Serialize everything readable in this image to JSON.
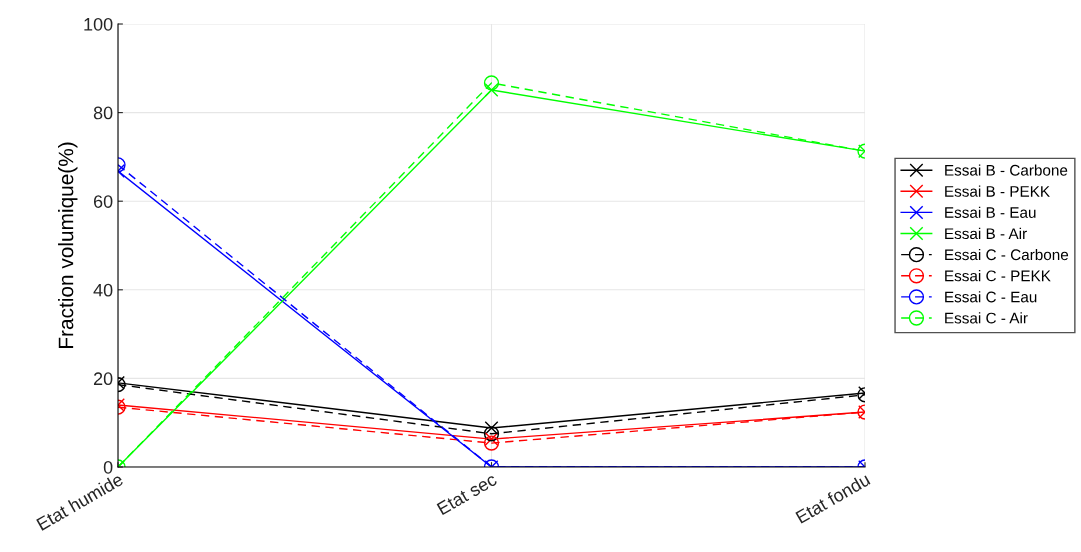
{
  "chart_data": {
    "type": "line",
    "ylabel": "Fraction volumique(%)",
    "categories": [
      "Etat humide",
      "Etat sec",
      "Etat fondu"
    ],
    "ylim": [
      0,
      100
    ],
    "yticks": [
      0,
      20,
      40,
      60,
      80,
      100
    ],
    "grid": true,
    "legend": "right",
    "series": [
      {
        "name": "Essai B - Carbone",
        "color": "#000000",
        "marker": "cross",
        "line_style": "solid",
        "values": [
          19.0,
          8.8,
          16.7
        ]
      },
      {
        "name": "Essai B - PEKK",
        "color": "#ff0000",
        "marker": "cross",
        "line_style": "solid",
        "values": [
          14.0,
          6.3,
          12.4
        ]
      },
      {
        "name": "Essai B - Eau",
        "color": "#0000ff",
        "marker": "cross",
        "line_style": "solid",
        "values": [
          66.8,
          0,
          0
        ]
      },
      {
        "name": "Essai B - Air",
        "color": "#00ff00",
        "marker": "cross",
        "line_style": "solid",
        "values": [
          0,
          85.1,
          71.3
        ]
      },
      {
        "name": "Essai C - Carbone",
        "color": "#000000",
        "marker": "circle",
        "line_style": "dashed",
        "values": [
          18.6,
          7.5,
          16.3
        ]
      },
      {
        "name": "Essai C - PEKK",
        "color": "#ff0000",
        "marker": "circle",
        "line_style": "dashed",
        "values": [
          13.5,
          5.4,
          12.4
        ]
      },
      {
        "name": "Essai C - Eau",
        "color": "#0000ff",
        "marker": "circle",
        "line_style": "dashed",
        "values": [
          68.2,
          0,
          0
        ]
      },
      {
        "name": "Essai C - Air",
        "color": "#00ff00",
        "marker": "circle",
        "line_style": "dashed",
        "values": [
          0,
          86.7,
          71.3
        ]
      }
    ]
  }
}
